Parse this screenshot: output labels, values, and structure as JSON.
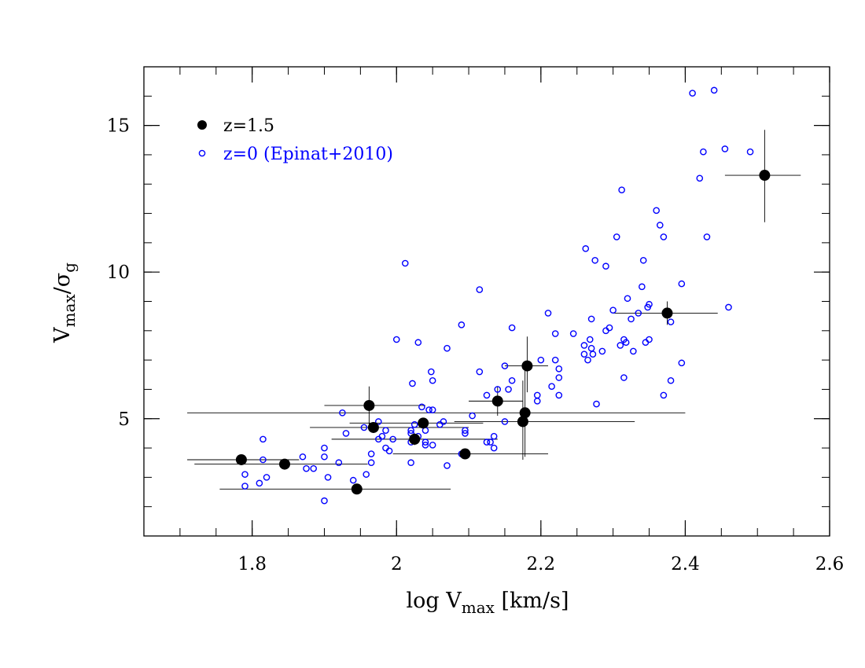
{
  "chart_data": {
    "type": "scatter",
    "title": "",
    "xlabel": "log V",
    "xlabel_sub": "max",
    "xlabel_suffix": " [km/s]",
    "ylabel": "V",
    "ylabel_sub": "max",
    "ylabel_mid": "/σ",
    "ylabel_sub2": "g",
    "xlim": [
      1.65,
      2.6
    ],
    "ylim": [
      1.0,
      17.0
    ],
    "x_ticks": [
      1.8,
      2.0,
      2.2,
      2.4,
      2.6
    ],
    "x_tick_labels": [
      "1.8",
      "2",
      "2.2",
      "2.4",
      "2.6"
    ],
    "y_ticks": [
      5,
      10,
      15
    ],
    "y_tick_labels": [
      "5",
      "10",
      "15"
    ],
    "legend_position": "top-left",
    "colors": {
      "z15": "#000000",
      "z0": "#0000ff",
      "axis": "#000000"
    },
    "series": [
      {
        "name": "z=1.5",
        "marker": "filled-circle",
        "points": [
          {
            "x": 1.785,
            "y": 3.6,
            "xlo": 1.71,
            "xhi": 1.865,
            "ylo": 3.6,
            "yhi": 3.6
          },
          {
            "x": 1.845,
            "y": 3.45,
            "xlo": 1.72,
            "xhi": 1.96,
            "ylo": 3.45,
            "yhi": 3.45
          },
          {
            "x": 1.945,
            "y": 2.6,
            "xlo": 1.755,
            "xhi": 2.075,
            "ylo": 2.45,
            "yhi": 2.75
          },
          {
            "x": 1.962,
            "y": 5.45,
            "xlo": 1.9,
            "xhi": 2.04,
            "ylo": 4.8,
            "yhi": 6.1
          },
          {
            "x": 1.968,
            "y": 4.7,
            "xlo": 1.88,
            "xhi": 2.1,
            "ylo": 4.6,
            "yhi": 4.8
          },
          {
            "x": 2.025,
            "y": 4.3,
            "xlo": 1.91,
            "xhi": 2.14,
            "ylo": 4.1,
            "yhi": 4.5
          },
          {
            "x": 2.037,
            "y": 4.85,
            "xlo": 1.935,
            "xhi": 2.12,
            "ylo": 4.7,
            "yhi": 5.0
          },
          {
            "x": 2.095,
            "y": 3.8,
            "xlo": 1.995,
            "xhi": 2.21,
            "ylo": 3.7,
            "yhi": 3.9
          },
          {
            "x": 2.14,
            "y": 5.6,
            "xlo": 2.1,
            "xhi": 2.175,
            "ylo": 5.1,
            "yhi": 6.1
          },
          {
            "x": 2.175,
            "y": 4.9,
            "xlo": 2.08,
            "xhi": 2.33,
            "ylo": 3.6,
            "yhi": 6.3
          },
          {
            "x": 2.178,
            "y": 5.2,
            "xlo": 1.71,
            "xhi": 2.4,
            "ylo": 3.7,
            "yhi": 6.7
          },
          {
            "x": 2.181,
            "y": 6.8,
            "xlo": 2.15,
            "xhi": 2.21,
            "ylo": 5.9,
            "yhi": 7.8
          },
          {
            "x": 2.375,
            "y": 8.6,
            "xlo": 2.3,
            "xhi": 2.445,
            "ylo": 8.2,
            "yhi": 9.0
          },
          {
            "x": 2.51,
            "y": 13.3,
            "xlo": 2.455,
            "xhi": 2.56,
            "ylo": 11.7,
            "yhi": 14.85
          }
        ]
      },
      {
        "name": "z=0 (Epinat+2010)",
        "marker": "open-circle",
        "points": [
          [
            1.79,
            2.7
          ],
          [
            1.79,
            3.1
          ],
          [
            1.81,
            2.8
          ],
          [
            1.815,
            4.3
          ],
          [
            1.815,
            3.6
          ],
          [
            1.82,
            3.0
          ],
          [
            1.87,
            3.7
          ],
          [
            1.875,
            3.3
          ],
          [
            1.885,
            3.3
          ],
          [
            1.9,
            2.2
          ],
          [
            1.9,
            3.7
          ],
          [
            1.9,
            4.0
          ],
          [
            1.905,
            3.0
          ],
          [
            1.92,
            3.5
          ],
          [
            1.925,
            5.2
          ],
          [
            1.93,
            4.5
          ],
          [
            1.94,
            2.9
          ],
          [
            1.955,
            4.7
          ],
          [
            1.958,
            3.1
          ],
          [
            1.965,
            3.5
          ],
          [
            1.965,
            3.8
          ],
          [
            1.97,
            4.7
          ],
          [
            1.975,
            4.9
          ],
          [
            1.975,
            4.3
          ],
          [
            1.98,
            4.4
          ],
          [
            1.985,
            4.0
          ],
          [
            1.985,
            4.6
          ],
          [
            1.99,
            3.9
          ],
          [
            1.995,
            4.3
          ],
          [
            2.0,
            7.7
          ],
          [
            2.012,
            10.3
          ],
          [
            2.02,
            4.5
          ],
          [
            2.02,
            4.6
          ],
          [
            2.02,
            3.5
          ],
          [
            2.02,
            4.2
          ],
          [
            2.022,
            6.2
          ],
          [
            2.025,
            4.8
          ],
          [
            2.03,
            4.4
          ],
          [
            2.03,
            7.6
          ],
          [
            2.035,
            5.4
          ],
          [
            2.04,
            4.6
          ],
          [
            2.04,
            4.1
          ],
          [
            2.04,
            4.2
          ],
          [
            2.045,
            5.3
          ],
          [
            2.048,
            6.6
          ],
          [
            2.05,
            5.3
          ],
          [
            2.05,
            6.3
          ],
          [
            2.05,
            4.1
          ],
          [
            2.06,
            4.8
          ],
          [
            2.065,
            4.9
          ],
          [
            2.07,
            7.4
          ],
          [
            2.07,
            3.4
          ],
          [
            2.09,
            8.2
          ],
          [
            2.09,
            3.8
          ],
          [
            2.095,
            4.6
          ],
          [
            2.095,
            4.5
          ],
          [
            2.105,
            5.1
          ],
          [
            2.115,
            9.4
          ],
          [
            2.115,
            6.6
          ],
          [
            2.125,
            5.8
          ],
          [
            2.125,
            4.2
          ],
          [
            2.13,
            4.2
          ],
          [
            2.135,
            4.4
          ],
          [
            2.135,
            4.0
          ],
          [
            2.14,
            6.0
          ],
          [
            2.15,
            6.8
          ],
          [
            2.15,
            4.9
          ],
          [
            2.155,
            6.0
          ],
          [
            2.16,
            8.1
          ],
          [
            2.16,
            6.3
          ],
          [
            2.195,
            5.8
          ],
          [
            2.195,
            5.6
          ],
          [
            2.2,
            7.0
          ],
          [
            2.21,
            8.6
          ],
          [
            2.215,
            6.1
          ],
          [
            2.22,
            7.0
          ],
          [
            2.22,
            7.9
          ],
          [
            2.225,
            6.7
          ],
          [
            2.225,
            6.4
          ],
          [
            2.225,
            5.8
          ],
          [
            2.245,
            7.9
          ],
          [
            2.26,
            7.2
          ],
          [
            2.26,
            7.5
          ],
          [
            2.262,
            10.8
          ],
          [
            2.265,
            7.0
          ],
          [
            2.268,
            7.7
          ],
          [
            2.27,
            8.4
          ],
          [
            2.27,
            7.4
          ],
          [
            2.272,
            7.2
          ],
          [
            2.275,
            10.4
          ],
          [
            2.277,
            5.5
          ],
          [
            2.285,
            7.3
          ],
          [
            2.29,
            8.0
          ],
          [
            2.29,
            10.2
          ],
          [
            2.295,
            8.1
          ],
          [
            2.3,
            8.7
          ],
          [
            2.305,
            11.2
          ],
          [
            2.31,
            7.5
          ],
          [
            2.312,
            12.8
          ],
          [
            2.315,
            7.7
          ],
          [
            2.315,
            6.4
          ],
          [
            2.318,
            7.6
          ],
          [
            2.32,
            9.1
          ],
          [
            2.325,
            8.4
          ],
          [
            2.328,
            7.3
          ],
          [
            2.335,
            8.6
          ],
          [
            2.34,
            9.5
          ],
          [
            2.342,
            10.4
          ],
          [
            2.345,
            7.6
          ],
          [
            2.348,
            8.8
          ],
          [
            2.35,
            7.7
          ],
          [
            2.35,
            8.9
          ],
          [
            2.36,
            12.1
          ],
          [
            2.365,
            11.6
          ],
          [
            2.37,
            11.2
          ],
          [
            2.37,
            5.8
          ],
          [
            2.38,
            8.3
          ],
          [
            2.38,
            6.3
          ],
          [
            2.395,
            6.9
          ],
          [
            2.395,
            9.6
          ],
          [
            2.41,
            16.1
          ],
          [
            2.42,
            13.2
          ],
          [
            2.425,
            14.1
          ],
          [
            2.43,
            11.2
          ],
          [
            2.44,
            16.2
          ],
          [
            2.455,
            14.2
          ],
          [
            2.46,
            8.8
          ],
          [
            2.49,
            14.1
          ]
        ]
      }
    ]
  }
}
